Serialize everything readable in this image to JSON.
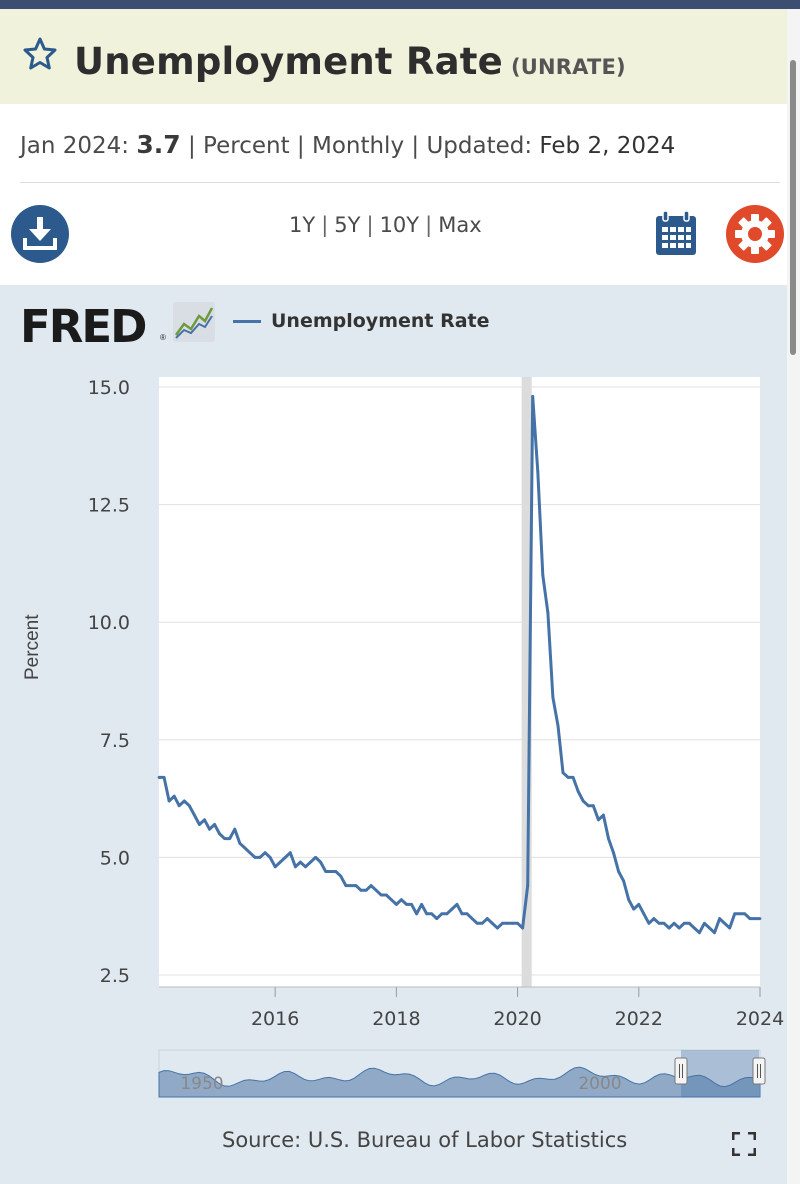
{
  "series_id": {
    "title": "Unemployment Rate",
    "code": "(UNRATE)"
  },
  "info": {
    "period_label": "Jan 2024:",
    "value": "3.7",
    "unit": "Percent",
    "frequency": "Monthly",
    "updated_label": "Updated:",
    "updated_date": "Feb 2, 2024"
  },
  "ranges": [
    "1Y",
    "5Y",
    "10Y",
    "Max"
  ],
  "icons": {
    "download": "download-icon",
    "calendar": "calendar-icon",
    "settings": "gear-icon",
    "favorite": "star-icon",
    "expand": "fullscreen-icon"
  },
  "colors": {
    "line": "#4572a7",
    "recession": "#dcdcdc",
    "download_button": "#2d5a8c",
    "settings_button": "#e0492a",
    "header_bg": "#f1f2dc"
  },
  "logo": "FRED",
  "logo_mark": "®",
  "source": "Source: U.S. Bureau of Labor Statistics",
  "chart_data": {
    "type": "line",
    "ylabel": "Percent",
    "legend": "Unemployment Rate",
    "legend_position": "top-left",
    "ylim": [
      2.5,
      15.0
    ],
    "yticks": [
      "15.0",
      "12.5",
      "10.0",
      "7.5",
      "5.0",
      "2.5"
    ],
    "xticks": [
      "2016",
      "2018",
      "2020",
      "2022",
      "2024"
    ],
    "xrange": [
      "2014-02",
      "2024-01"
    ],
    "grid": true,
    "recession_shading": [
      "2020-02",
      "2020-04"
    ],
    "series": [
      {
        "name": "Unemployment Rate",
        "start": "2014-02",
        "values": [
          6.7,
          6.7,
          6.2,
          6.3,
          6.1,
          6.2,
          6.1,
          5.9,
          5.7,
          5.8,
          5.6,
          5.7,
          5.5,
          5.4,
          5.4,
          5.6,
          5.3,
          5.2,
          5.1,
          5.0,
          5.0,
          5.1,
          5.0,
          4.8,
          4.9,
          5.0,
          5.1,
          4.8,
          4.9,
          4.8,
          4.9,
          5.0,
          4.9,
          4.7,
          4.7,
          4.7,
          4.6,
          4.4,
          4.4,
          4.4,
          4.3,
          4.3,
          4.4,
          4.3,
          4.2,
          4.2,
          4.1,
          4.0,
          4.1,
          4.0,
          4.0,
          3.8,
          4.0,
          3.8,
          3.8,
          3.7,
          3.8,
          3.8,
          3.9,
          4.0,
          3.8,
          3.8,
          3.7,
          3.6,
          3.6,
          3.7,
          3.6,
          3.5,
          3.6,
          3.6,
          3.6,
          3.6,
          3.5,
          4.4,
          14.8,
          13.2,
          11.0,
          10.2,
          8.4,
          7.8,
          6.8,
          6.7,
          6.7,
          6.4,
          6.2,
          6.1,
          6.1,
          5.8,
          5.9,
          5.4,
          5.1,
          4.7,
          4.5,
          4.1,
          3.9,
          4.0,
          3.8,
          3.6,
          3.7,
          3.6,
          3.6,
          3.5,
          3.6,
          3.5,
          3.6,
          3.6,
          3.5,
          3.4,
          3.6,
          3.5,
          3.4,
          3.7,
          3.6,
          3.5,
          3.8,
          3.8,
          3.8,
          3.7,
          3.7,
          3.7
        ]
      }
    ]
  },
  "navigator": {
    "labels": [
      "1950",
      "2000"
    ]
  }
}
